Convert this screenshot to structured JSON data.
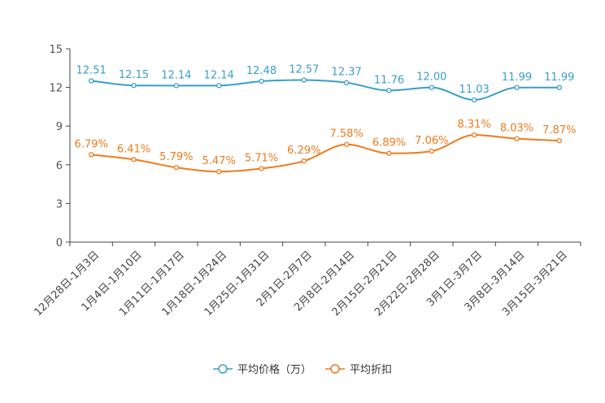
{
  "chart_data": {
    "type": "line",
    "categories": [
      "12月28日-1月3日",
      "1月4日-1月10日",
      "1月11日-1月17日",
      "1月18日-1月24日",
      "1月25日-1月31日",
      "2月1日-2月7日",
      "2月8日-2月14日",
      "2月15日-2月21日",
      "2月22日-2月28日",
      "3月1日-3月7日",
      "3月8日-3月14日",
      "3月15日-3月21日"
    ],
    "series": [
      {
        "name": "平均价格（万）",
        "values": [
          12.51,
          12.15,
          12.14,
          12.14,
          12.48,
          12.57,
          12.37,
          11.76,
          12.0,
          11.03,
          11.99,
          11.99
        ],
        "labels": [
          "12.51",
          "12.15",
          "12.14",
          "12.14",
          "12.48",
          "12.57",
          "12.37",
          "11.76",
          "12.00",
          "11.03",
          "11.99",
          "11.99"
        ],
        "color": "#3a9ecb"
      },
      {
        "name": "平均折扣",
        "values": [
          6.79,
          6.41,
          5.79,
          5.47,
          5.71,
          6.29,
          7.58,
          6.89,
          7.06,
          8.31,
          8.03,
          7.87
        ],
        "labels": [
          "6.79%",
          "6.41%",
          "5.79%",
          "5.47%",
          "5.71%",
          "6.29%",
          "7.58%",
          "6.89%",
          "7.06%",
          "8.31%",
          "8.03%",
          "7.87%"
        ],
        "color": "#f07a1c"
      }
    ],
    "y_ticks": [
      "0",
      "3",
      "6",
      "9",
      "12",
      "15"
    ],
    "ylim": [
      0,
      15
    ],
    "grid": false,
    "legend_position": "bottom-center",
    "title": "",
    "xlabel": "",
    "ylabel": ""
  }
}
